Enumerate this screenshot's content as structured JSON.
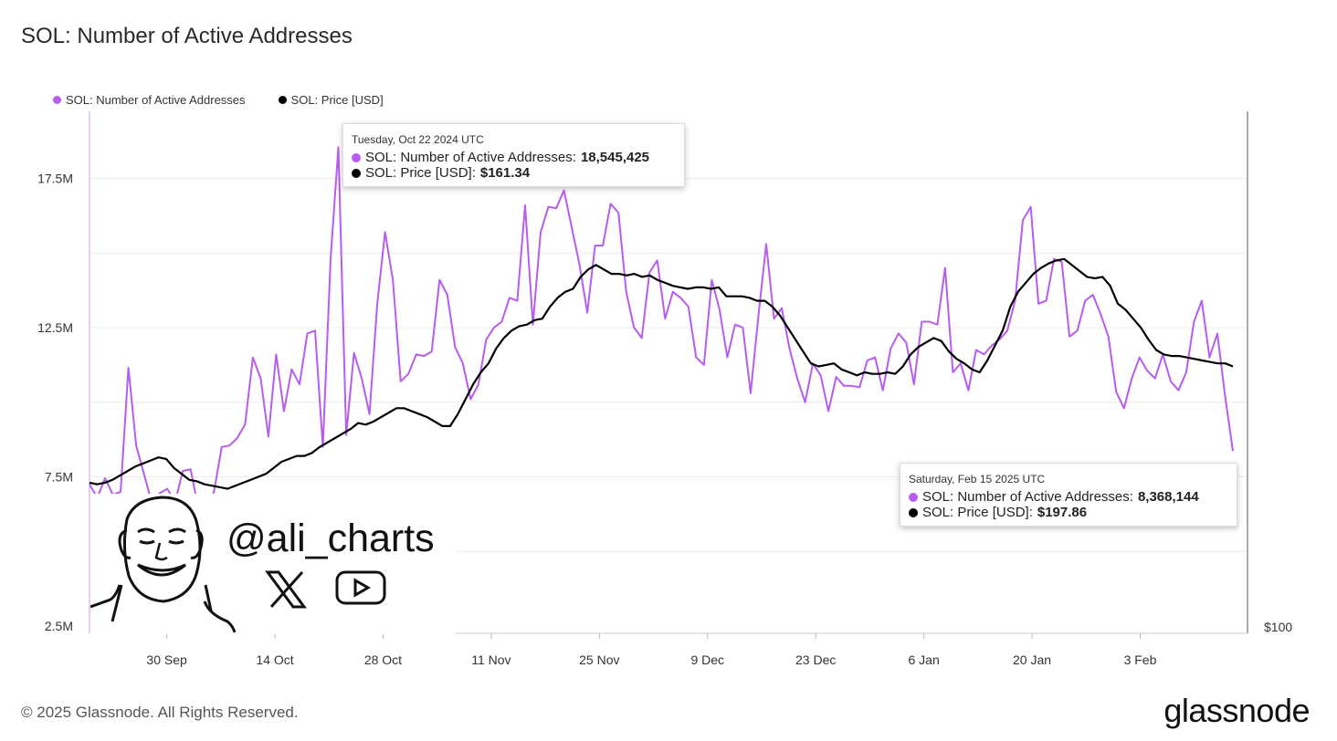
{
  "header": {
    "title": "SOL: Number of Active Addresses"
  },
  "legend": [
    {
      "label": "SOL: Number of Active Addresses",
      "color": "#b75cf0"
    },
    {
      "label": "SOL: Price [USD]",
      "color": "#000000"
    }
  ],
  "tooltips": [
    {
      "date": "Tuesday, Oct 22 2024 UTC",
      "addresses_label": "SOL: Number of Active Addresses:",
      "addresses_value": "18,545,425",
      "price_label": "SOL: Price [USD]:",
      "price_value": "$161.34"
    },
    {
      "date": "Saturday, Feb 15 2025 UTC",
      "addresses_label": "SOL: Number of Active Addresses:",
      "addresses_value": "8,368,144",
      "price_label": "SOL: Price [USD]:",
      "price_value": "$197.86"
    }
  ],
  "overlay": {
    "handle": "@ali_charts",
    "icons": [
      "portrait-icon",
      "x-logo-icon",
      "youtube-icon"
    ]
  },
  "footer": {
    "copyright": "© 2025 Glassnode. All Rights Reserved.",
    "brand": "glassnode"
  },
  "chart_data": {
    "type": "line",
    "x_start": "2024-09-20",
    "x_end": "2025-02-15",
    "x_ticks": [
      "30 Sep",
      "14 Oct",
      "28 Oct",
      "11 Nov",
      "25 Nov",
      "9 Dec",
      "23 Dec",
      "6 Jan",
      "20 Jan",
      "3 Feb"
    ],
    "x_tick_dates": [
      "2024-09-30",
      "2024-10-14",
      "2024-10-28",
      "2024-11-11",
      "2024-11-25",
      "2024-12-09",
      "2024-12-23",
      "2025-01-06",
      "2025-01-20",
      "2025-02-03"
    ],
    "y_left": {
      "ticks": [
        "2.5M",
        "7.5M",
        "12.5M",
        "17.5M"
      ],
      "tick_values": [
        2500000,
        7500000,
        12500000,
        17500000
      ],
      "ylim": [
        2500000,
        20000000
      ]
    },
    "y_right": {
      "ticks": [
        "$100"
      ],
      "tick_values": [
        100
      ]
    },
    "grid": true,
    "legend_position": "top-left",
    "series": [
      {
        "name": "SOL: Number of Active Addresses",
        "color": "#b75cf0",
        "axis": "left",
        "values": [
          7250000,
          6800000,
          7450000,
          6900000,
          7000000,
          11150000,
          8550000,
          7600000,
          6650000,
          6950000,
          7100000,
          6650000,
          7700000,
          7750000,
          6450000,
          6500000,
          7000000,
          8500000,
          8550000,
          8800000,
          9250000,
          11500000,
          10800000,
          8850000,
          11600000,
          9700000,
          11100000,
          10600000,
          12300000,
          12400000,
          8500000,
          14800000,
          18545425,
          8900000,
          11650000,
          10800000,
          9600000,
          13300000,
          15700000,
          14100000,
          10700000,
          10950000,
          11600000,
          11550000,
          11700000,
          14100000,
          13600000,
          11850000,
          11300000,
          10100000,
          10600000,
          12100000,
          12500000,
          12700000,
          13500000,
          13400000,
          16600000,
          12600000,
          15700000,
          16550000,
          16500000,
          17100000,
          15850000,
          14600000,
          13000000,
          15250000,
          15250000,
          16650000,
          16350000,
          13700000,
          12500000,
          12150000,
          14350000,
          14750000,
          12800000,
          13700000,
          13500000,
          13200000,
          11500000,
          11250000,
          14100000,
          13100000,
          11500000,
          12600000,
          12500000,
          10300000,
          12900000,
          15300000,
          12800000,
          13150000,
          11800000,
          10800000,
          10000000,
          11300000,
          10900000,
          9700000,
          10850000,
          10550000,
          10550000,
          10500000,
          11400000,
          11500000,
          10400000,
          11800000,
          12300000,
          12000000,
          10600000,
          12700000,
          12700000,
          12600000,
          14500000,
          11000000,
          11300000,
          10400000,
          11750000,
          11600000,
          11900000,
          12100000,
          12400000,
          13400000,
          16100000,
          16550000,
          13300000,
          13400000,
          14800000,
          14700000,
          12200000,
          12400000,
          13400000,
          13600000,
          12950000,
          12200000,
          10350000,
          9800000,
          10800000,
          11500000,
          11050000,
          10800000,
          11600000,
          10700000,
          10400000,
          11000000,
          12700000,
          13400000,
          11500000,
          12300000,
          10200000,
          8368144
        ]
      },
      {
        "name": "SOL: Price [USD]",
        "color": "#000000",
        "axis": "right",
        "values": [
          7300000,
          7250000,
          7300000,
          7400000,
          7550000,
          7700000,
          7850000,
          7950000,
          8050000,
          8150000,
          8100000,
          7800000,
          7600000,
          7400000,
          7350000,
          7250000,
          7200000,
          7150000,
          7100000,
          7200000,
          7300000,
          7400000,
          7500000,
          7600000,
          7800000,
          8000000,
          8100000,
          8200000,
          8200000,
          8300000,
          8500000,
          8650000,
          8800000,
          8950000,
          9100000,
          9300000,
          9250000,
          9350000,
          9500000,
          9650000,
          9800000,
          9800000,
          9700000,
          9600000,
          9500000,
          9350000,
          9200000,
          9200000,
          9600000,
          10100000,
          10600000,
          11000000,
          11300000,
          11800000,
          12150000,
          12400000,
          12550000,
          12600000,
          12750000,
          12800000,
          13200000,
          13500000,
          13700000,
          13800000,
          14200000,
          14450000,
          14600000,
          14450000,
          14300000,
          14300000,
          14250000,
          14300000,
          14200000,
          14250000,
          14100000,
          14000000,
          13900000,
          13850000,
          13800000,
          13850000,
          13850000,
          13800000,
          13850000,
          13550000,
          13550000,
          13550000,
          13500000,
          13400000,
          13400000,
          13200000,
          12900000,
          12500000,
          12100000,
          11700000,
          11300000,
          11200000,
          11250000,
          11300000,
          11100000,
          11000000,
          10900000,
          11000000,
          10950000,
          10950000,
          11000000,
          10950000,
          11200000,
          11600000,
          11850000,
          12000000,
          12150000,
          12050000,
          11700000,
          11450000,
          11300000,
          11100000,
          11000000,
          11400000,
          11900000,
          12400000,
          13200000,
          13700000,
          14000000,
          14300000,
          14500000,
          14650000,
          14750000,
          14800000,
          14600000,
          14400000,
          14200000,
          14150000,
          14200000,
          13900000,
          13300000,
          13100000,
          12800000,
          12500000,
          12100000,
          11750000,
          11600000,
          11550000,
          11550000,
          11500000,
          11450000,
          11400000,
          11350000,
          11300000,
          11300000,
          11200000
        ]
      }
    ]
  }
}
